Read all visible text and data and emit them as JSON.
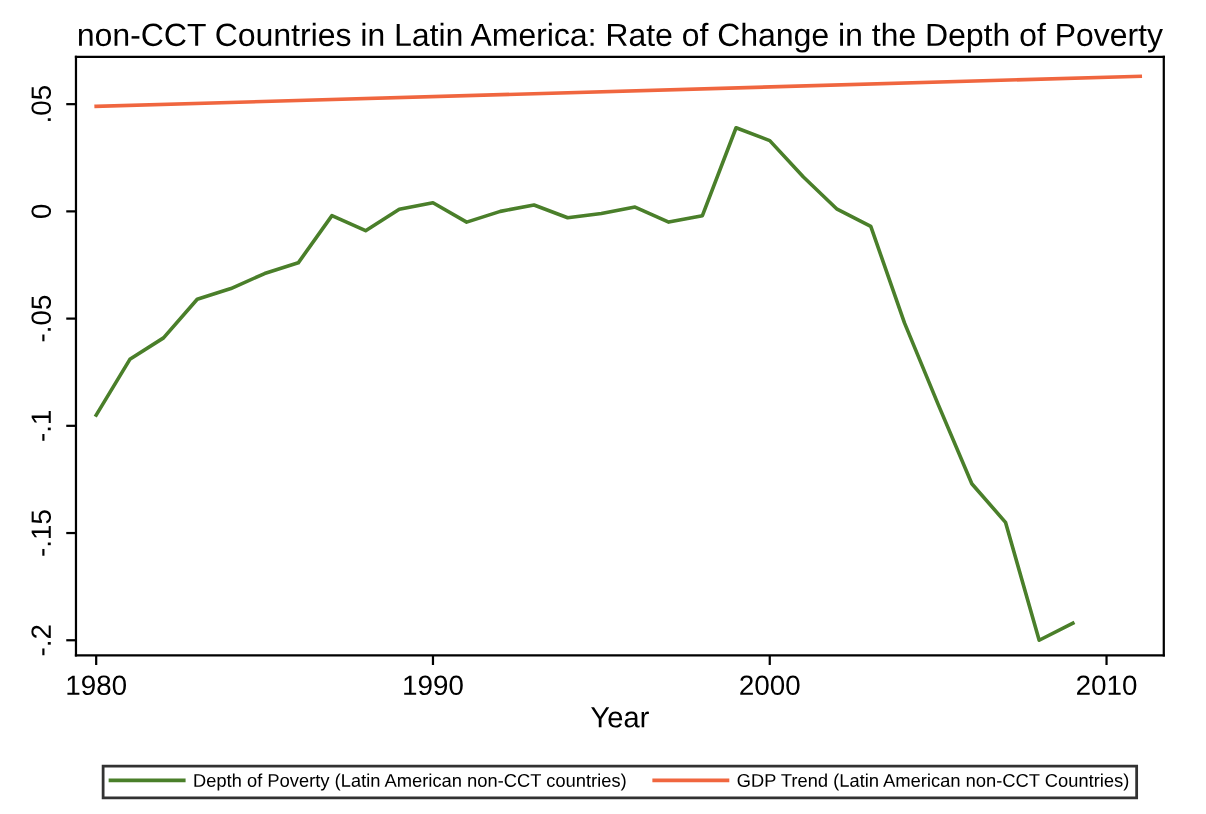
{
  "chart_data": {
    "type": "line",
    "title": "non-CCT Countries in Latin America: Rate of Change in the Depth of Poverty",
    "xlabel": "Year",
    "series": [
      {
        "name": "Depth of Poverty (Latin American non-CCT countries)",
        "color": "#4a7f2a",
        "x": [
          1980,
          1981,
          1982,
          1983,
          1984,
          1985,
          1986,
          1987,
          1988,
          1989,
          1990,
          1991,
          1992,
          1993,
          1994,
          1995,
          1996,
          1997,
          1998,
          1999,
          2000,
          2001,
          2002,
          2003,
          2004,
          2005,
          2006,
          2007,
          2008,
          2009
        ],
        "values": [
          -0.095,
          -0.069,
          -0.059,
          -0.041,
          -0.036,
          -0.029,
          -0.024,
          -0.002,
          -0.009,
          0.001,
          0.004,
          -0.005,
          0.0,
          0.003,
          -0.003,
          -0.001,
          0.002,
          -0.005,
          -0.002,
          0.039,
          0.033,
          0.016,
          0.001,
          -0.007,
          -0.052,
          -0.09,
          -0.127,
          -0.145,
          -0.2,
          -0.192
        ]
      },
      {
        "name": "GDP Trend (Latin American non-CCT Countries)",
        "color": "#f0663f",
        "x": [
          1980,
          2011
        ],
        "values": [
          0.049,
          0.063
        ]
      }
    ],
    "xlim": [
      1979.4,
      2011.7
    ],
    "ylim": [
      -0.207,
      0.072
    ],
    "xticks": [
      1980,
      1990,
      2000,
      2010
    ],
    "yticks": [
      {
        "value": 0.05,
        "label": ".05"
      },
      {
        "value": 0,
        "label": "0"
      },
      {
        "value": -0.05,
        "label": "-.05"
      },
      {
        "value": -0.1,
        "label": "-.1"
      },
      {
        "value": -0.15,
        "label": "-.15"
      },
      {
        "value": -0.2,
        "label": "-.2"
      }
    ],
    "grid": false,
    "legend": "bottom",
    "marker": "none",
    "line_style": "solid"
  }
}
